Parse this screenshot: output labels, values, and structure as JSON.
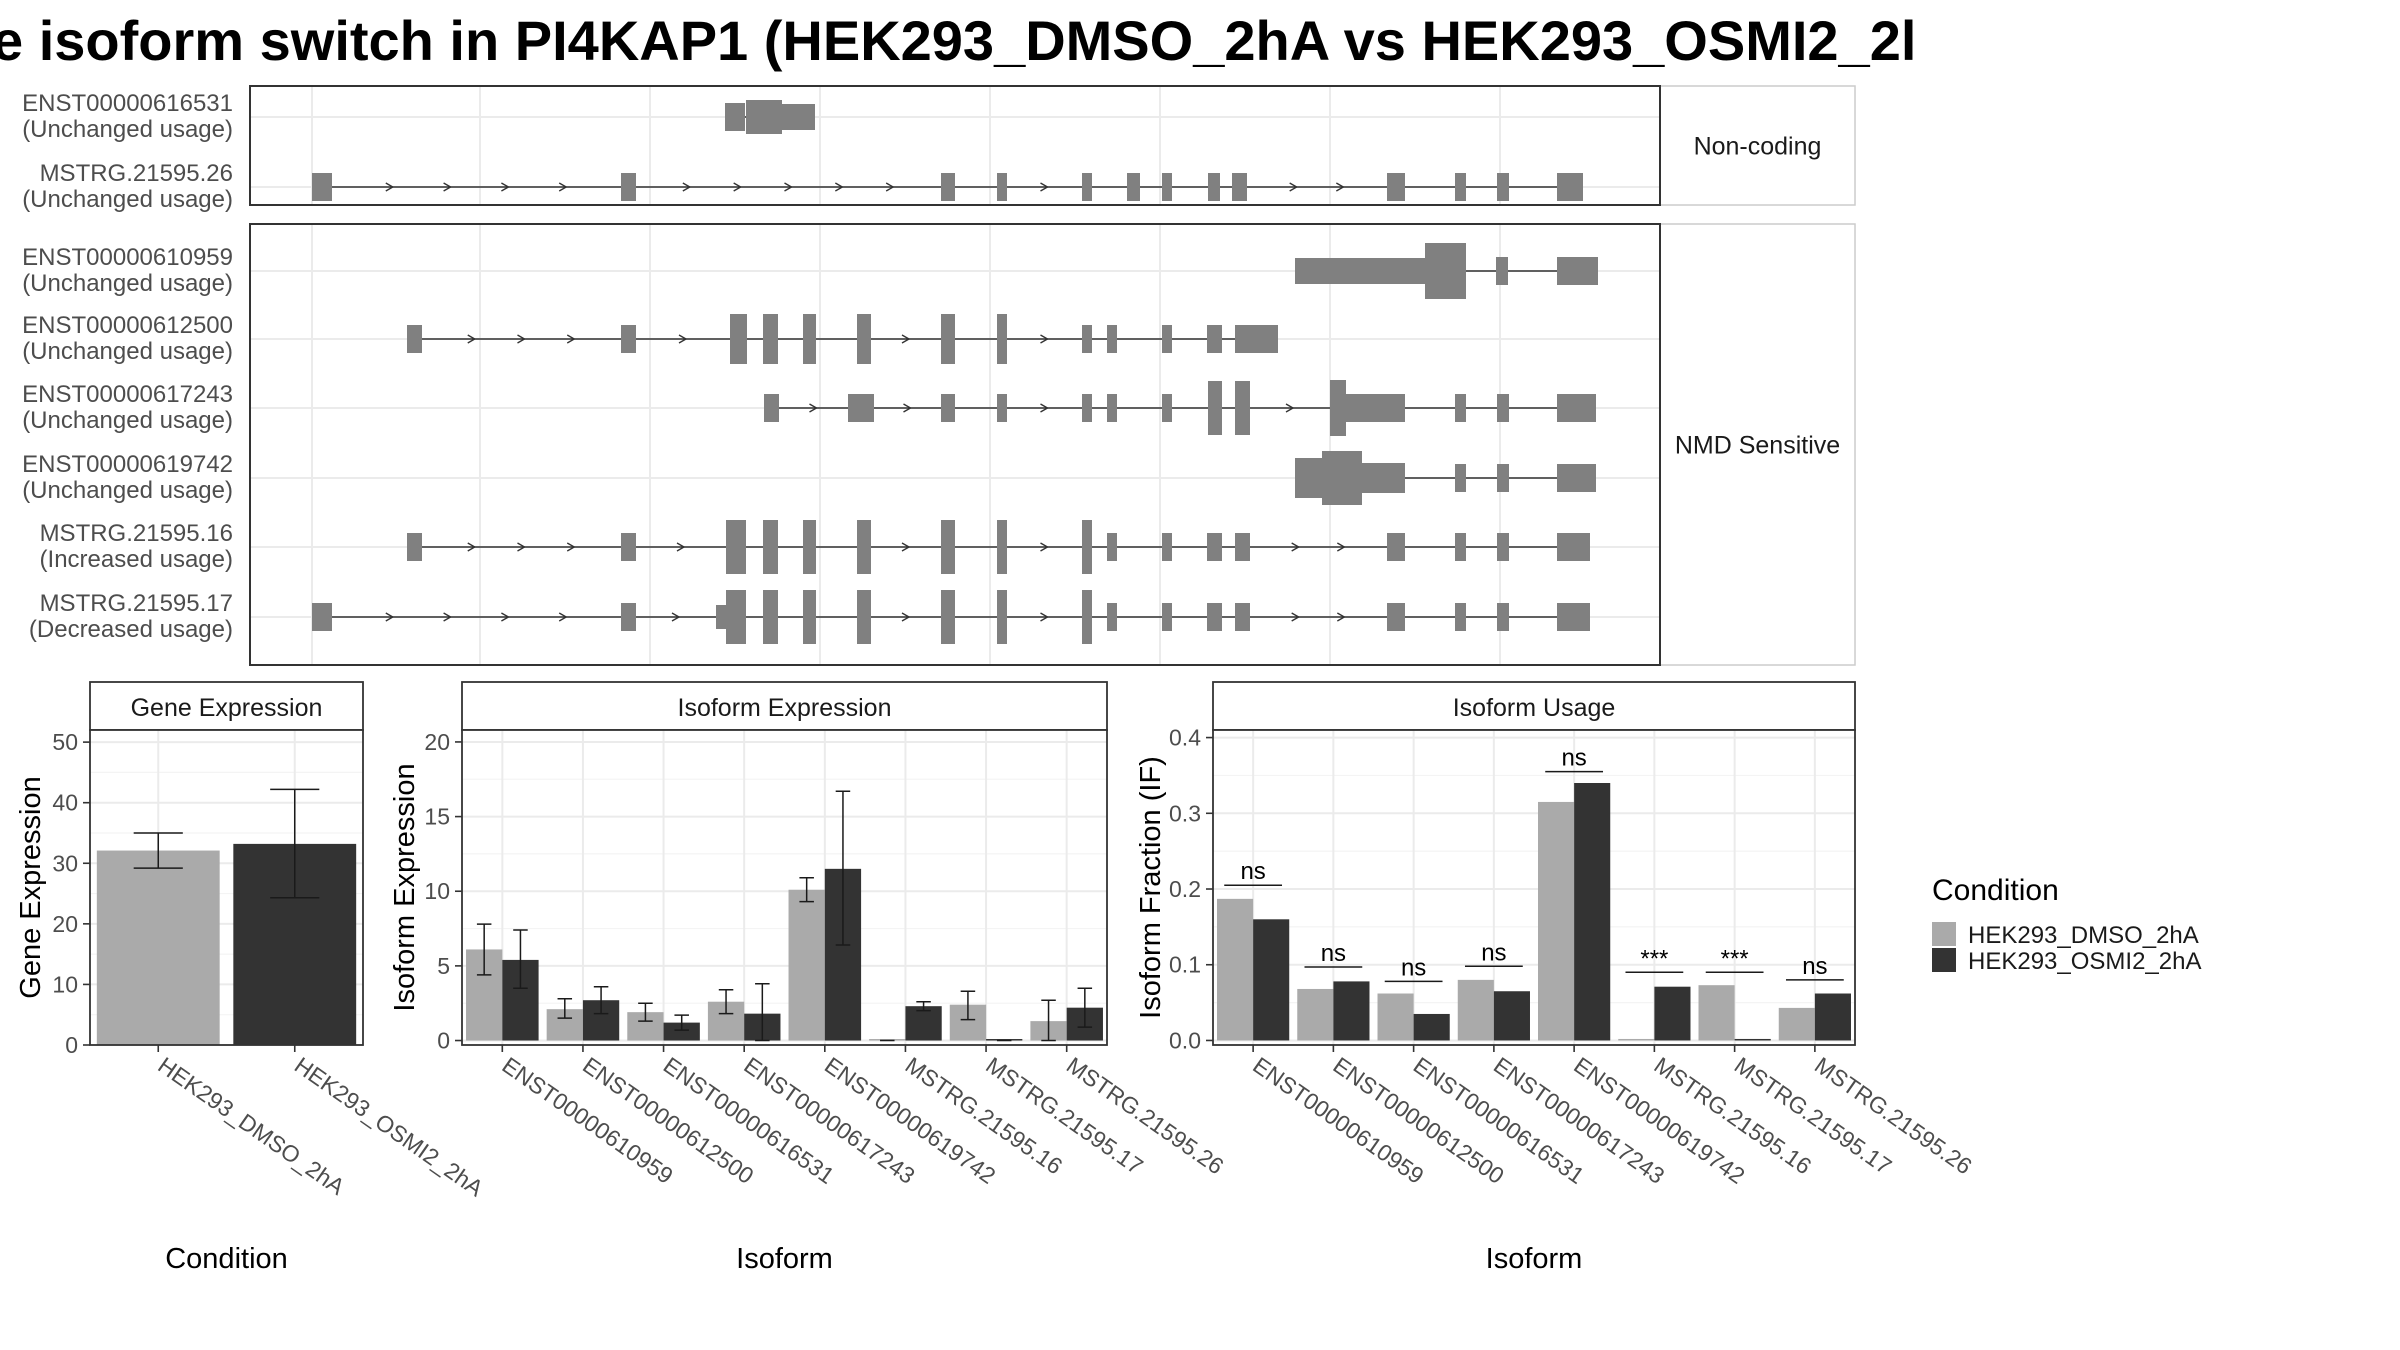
{
  "title": "e isoform switch in PI4KAP1 (HEK293_DMSO_2hA vs HEK293_OSMI2_2l",
  "colors": {
    "dmso": "#aaaaaa",
    "osmi2": "#333333",
    "exon": "#808080",
    "panel_border": "#333333",
    "strip_fill": "#ffffff",
    "grid": "#ebebeb"
  },
  "transcripts": {
    "groups": [
      {
        "label": "Non-coding",
        "rows": [
          {
            "id": "ENST00000616531",
            "usage": "(Unchanged usage)"
          },
          {
            "id": "MSTRG.21595.26",
            "usage": "(Unchanged usage)"
          }
        ]
      },
      {
        "label": "NMD Sensitive",
        "rows": [
          {
            "id": "ENST00000610959",
            "usage": "(Unchanged usage)"
          },
          {
            "id": "ENST00000612500",
            "usage": "(Unchanged usage)"
          },
          {
            "id": "ENST00000617243",
            "usage": "(Unchanged usage)"
          },
          {
            "id": "ENST00000619742",
            "usage": "(Unchanged usage)"
          },
          {
            "id": "MSTRG.21595.16",
            "usage": "(Increased usage)"
          },
          {
            "id": "MSTRG.21595.17",
            "usage": "(Decreased usage)"
          }
        ]
      }
    ]
  },
  "legend": {
    "title": "Condition",
    "items": [
      {
        "label": "HEK293_DMSO_2hA",
        "color": "#aaaaaa"
      },
      {
        "label": "HEK293_OSMI2_2hA",
        "color": "#333333"
      }
    ]
  },
  "chart_data": [
    {
      "type": "bar",
      "title": "Gene Expression",
      "xlabel": "Condition",
      "ylabel": "Gene Expression",
      "ylim": [
        0,
        52
      ],
      "yticks": [
        0,
        10,
        20,
        30,
        40,
        50
      ],
      "categories": [
        "HEK293_DMSO_2hA",
        "HEK293_OSMI2_2hA"
      ],
      "values": [
        32.1,
        33.2
      ],
      "errors": [
        [
          29.2,
          35.0
        ],
        [
          24.3,
          42.2
        ]
      ]
    },
    {
      "type": "bar",
      "title": "Isoform Expression",
      "xlabel": "Isoform",
      "ylabel": "Isoform Expression",
      "ylim": [
        -0.3,
        20.8
      ],
      "yticks": [
        0,
        5,
        10,
        15,
        20
      ],
      "categories": [
        "ENST00000610959",
        "ENST00000612500",
        "ENST00000616531",
        "ENST00000617243",
        "ENST00000619742",
        "MSTRG.21595.16",
        "MSTRG.21595.17",
        "MSTRG.21595.26"
      ],
      "series": [
        {
          "name": "HEK293_DMSO_2hA",
          "values": [
            6.1,
            2.1,
            1.9,
            2.6,
            10.1,
            0.0,
            2.4,
            1.3
          ],
          "errors": [
            [
              4.4,
              7.8
            ],
            [
              1.5,
              2.8
            ],
            [
              1.3,
              2.5
            ],
            [
              1.8,
              3.4
            ],
            [
              9.3,
              10.9
            ],
            [
              0.0,
              0.0
            ],
            [
              1.4,
              3.3
            ],
            [
              0.0,
              2.7
            ]
          ]
        },
        {
          "name": "HEK293_OSMI2_2hA",
          "values": [
            5.4,
            2.7,
            1.2,
            1.8,
            11.5,
            2.3,
            0.0,
            2.2
          ],
          "errors": [
            [
              3.5,
              7.4
            ],
            [
              1.8,
              3.6
            ],
            [
              0.7,
              1.7
            ],
            [
              0.0,
              3.8
            ],
            [
              6.4,
              16.7
            ],
            [
              2.0,
              2.6
            ],
            [
              0.0,
              0.0
            ],
            [
              0.9,
              3.5
            ]
          ]
        }
      ]
    },
    {
      "type": "bar",
      "title": "Isoform Usage",
      "xlabel": "Isoform",
      "ylabel": "Isoform Fraction (IF)",
      "ylim": [
        -0.006,
        0.41
      ],
      "yticks": [
        0.0,
        0.1,
        0.2,
        0.3,
        0.4
      ],
      "ytick_labels": [
        "0.0",
        "0.1",
        "0.2",
        "0.3",
        "0.4"
      ],
      "categories": [
        "ENST00000610959",
        "ENST00000612500",
        "ENST00000616531",
        "ENST00000617243",
        "ENST00000619742",
        "MSTRG.21595.16",
        "MSTRG.21595.17",
        "MSTRG.21595.26"
      ],
      "series": [
        {
          "name": "HEK293_DMSO_2hA",
          "values": [
            0.187,
            0.068,
            0.062,
            0.08,
            0.315,
            0.0,
            0.073,
            0.043
          ]
        },
        {
          "name": "HEK293_OSMI2_2hA",
          "values": [
            0.16,
            0.078,
            0.035,
            0.065,
            0.34,
            0.071,
            0.0,
            0.062
          ]
        }
      ],
      "significance": [
        "ns",
        "ns",
        "ns",
        "ns",
        "ns",
        "***",
        "***",
        "ns"
      ],
      "significance_y": [
        0.205,
        0.097,
        0.078,
        0.098,
        0.355,
        0.09,
        0.09,
        0.08
      ]
    }
  ]
}
